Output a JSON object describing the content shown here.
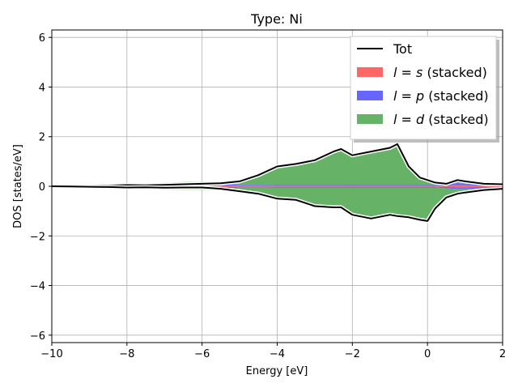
{
  "chart_data": {
    "type": "area",
    "title": "Type: Ni",
    "xlabel": "Energy [eV]",
    "ylabel": "DOS [states/eV]",
    "xlim": [
      -10,
      2
    ],
    "ylim": [
      -6.3,
      6.3
    ],
    "xticks": [
      -10,
      -8,
      -6,
      -4,
      -2,
      0,
      2
    ],
    "xtick_labels": [
      "−10",
      "−8",
      "−6",
      "−4",
      "−2",
      "0",
      "2"
    ],
    "yticks": [
      -6,
      -4,
      -2,
      0,
      2,
      4,
      6
    ],
    "ytick_labels": [
      "−6",
      "−4",
      "−2",
      "0",
      "2",
      "4",
      "6"
    ],
    "grid": true,
    "legend_position": "top-right",
    "x": [
      -10,
      -9.5,
      -9,
      -8.5,
      -8,
      -7.5,
      -7,
      -6.5,
      -6,
      -5.5,
      -5,
      -4.5,
      -4,
      -3.5,
      -3,
      -2.5,
      -2.3,
      -2,
      -1.5,
      -1,
      -0.8,
      -0.5,
      -0.2,
      0,
      0.2,
      0.5,
      0.8,
      1,
      1.5,
      2
    ],
    "series": [
      {
        "name": "Tot",
        "style": "line",
        "color": "#000000",
        "up": [
          0.0,
          0.01,
          0.02,
          0.03,
          0.05,
          0.04,
          0.06,
          0.08,
          0.1,
          0.12,
          0.2,
          0.45,
          0.8,
          0.9,
          1.05,
          1.4,
          1.5,
          1.25,
          1.4,
          1.55,
          1.7,
          0.8,
          0.35,
          0.25,
          0.15,
          0.1,
          0.25,
          0.2,
          0.1,
          0.08
        ],
        "down": [
          0.0,
          -0.01,
          -0.02,
          -0.03,
          -0.05,
          -0.04,
          -0.06,
          -0.05,
          -0.05,
          -0.1,
          -0.2,
          -0.3,
          -0.5,
          -0.55,
          -0.8,
          -0.85,
          -0.85,
          -1.15,
          -1.3,
          -1.15,
          -1.2,
          -1.25,
          -1.35,
          -1.4,
          -0.9,
          -0.45,
          -0.3,
          -0.25,
          -0.15,
          -0.1
        ]
      },
      {
        "name": "l = s (stacked)",
        "style": "area",
        "color": "#ff6666",
        "up": [
          0.0,
          0.01,
          0.02,
          0.03,
          0.04,
          0.03,
          0.04,
          0.05,
          0.05,
          0.04,
          0.02,
          0.02,
          0.02,
          0.02,
          0.02,
          0.02,
          0.02,
          0.02,
          0.02,
          0.02,
          0.02,
          0.02,
          0.02,
          0.02,
          0.02,
          0.03,
          0.05,
          0.04,
          0.03,
          0.03
        ],
        "down": [
          0.0,
          -0.01,
          -0.02,
          -0.03,
          -0.04,
          -0.03,
          -0.04,
          -0.04,
          -0.04,
          -0.04,
          -0.02,
          -0.02,
          -0.02,
          -0.02,
          -0.02,
          -0.02,
          -0.02,
          -0.02,
          -0.02,
          -0.02,
          -0.02,
          -0.02,
          -0.02,
          -0.02,
          -0.02,
          -0.03,
          -0.04,
          -0.04,
          -0.03,
          -0.03
        ]
      },
      {
        "name": "l = p (stacked)",
        "style": "area",
        "color": "#6666ff",
        "up": [
          0.0,
          0.01,
          0.02,
          0.03,
          0.04,
          0.03,
          0.04,
          0.05,
          0.06,
          0.05,
          0.04,
          0.04,
          0.03,
          0.03,
          0.03,
          0.03,
          0.03,
          0.03,
          0.03,
          0.03,
          0.03,
          0.03,
          0.03,
          0.03,
          0.03,
          0.05,
          0.08,
          0.07,
          0.05,
          0.05
        ],
        "down": [
          0.0,
          -0.01,
          -0.02,
          -0.03,
          -0.04,
          -0.03,
          -0.04,
          -0.05,
          -0.05,
          -0.05,
          -0.04,
          -0.04,
          -0.03,
          -0.03,
          -0.03,
          -0.03,
          -0.03,
          -0.03,
          -0.03,
          -0.03,
          -0.03,
          -0.03,
          -0.03,
          -0.03,
          -0.03,
          -0.05,
          -0.07,
          -0.07,
          -0.05,
          -0.05
        ]
      },
      {
        "name": "l = d (stacked)",
        "style": "area",
        "color": "#66b266",
        "up": [
          0.0,
          0.01,
          0.02,
          0.03,
          0.05,
          0.04,
          0.06,
          0.07,
          0.08,
          0.1,
          0.15,
          0.35,
          0.7,
          0.8,
          0.95,
          1.3,
          1.38,
          1.15,
          1.3,
          1.45,
          1.6,
          0.7,
          0.25,
          0.15,
          0.08,
          0.06,
          0.15,
          0.12,
          0.07,
          0.05
        ],
        "down": [
          0.0,
          -0.01,
          -0.02,
          -0.03,
          -0.05,
          -0.04,
          -0.06,
          -0.05,
          -0.05,
          -0.08,
          -0.15,
          -0.25,
          -0.4,
          -0.45,
          -0.68,
          -0.75,
          -0.78,
          -1.05,
          -1.2,
          -1.05,
          -1.1,
          -1.15,
          -1.25,
          -1.3,
          -0.8,
          -0.38,
          -0.22,
          -0.18,
          -0.1,
          -0.06
        ]
      }
    ]
  },
  "legend": {
    "items": [
      {
        "label": "Tot",
        "kind": "line",
        "color": "#000000"
      },
      {
        "label": "l = s (stacked)",
        "kind": "patch",
        "color": "#ff6666",
        "l_var": "l",
        "l_value": "s",
        "suffix": "(stacked)"
      },
      {
        "label": "l = p (stacked)",
        "kind": "patch",
        "color": "#6666ff",
        "l_var": "l",
        "l_value": "p",
        "suffix": "(stacked)"
      },
      {
        "label": "l = d (stacked)",
        "kind": "patch",
        "color": "#66b266",
        "l_var": "l",
        "l_value": "d",
        "suffix": "(stacked)"
      }
    ]
  }
}
